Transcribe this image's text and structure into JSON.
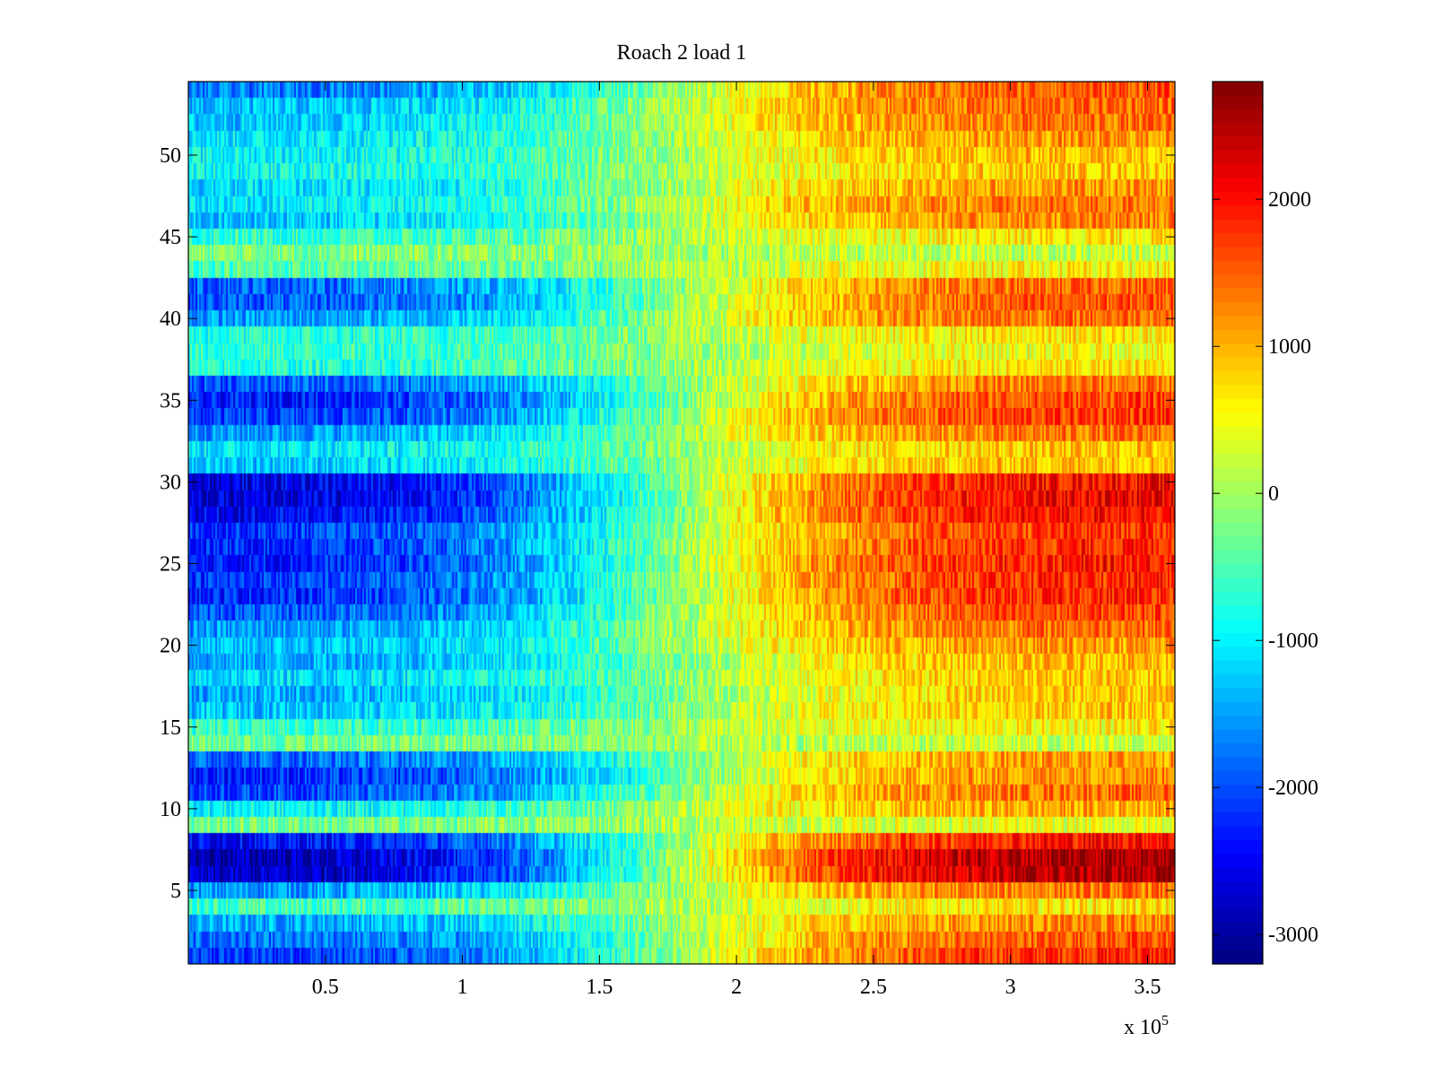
{
  "chart_data": {
    "type": "heatmap",
    "title": "Roach 2 load 1",
    "xlabel": "",
    "ylabel": "",
    "x_multiplier_label": "x 10",
    "x_multiplier_exponent": "5",
    "xlim": [
      0,
      3.6
    ],
    "ylim": [
      0.5,
      54.5
    ],
    "x_ticks": [
      0.5,
      1,
      1.5,
      2,
      2.5,
      3,
      3.5
    ],
    "x_tick_labels": [
      "0.5",
      "1",
      "1.5",
      "2",
      "2.5",
      "3",
      "3.5"
    ],
    "y_ticks": [
      5,
      10,
      15,
      20,
      25,
      30,
      35,
      40,
      45,
      50
    ],
    "y_tick_labels": [
      "5",
      "10",
      "15",
      "20",
      "25",
      "30",
      "35",
      "40",
      "45",
      "50"
    ],
    "colorbar": {
      "colormap": "jet",
      "clim": [
        -3200,
        2800
      ],
      "ticks": [
        2000,
        1000,
        0,
        -1000,
        -2000,
        -3000
      ],
      "tick_labels": [
        "2000",
        "1000",
        "0",
        "-1000",
        "-2000",
        "-3000"
      ]
    },
    "rows": {
      "description_omitted": true,
      "y_start": 1,
      "y_end": 54,
      "left_values": [
        -2200,
        -1900,
        -1500,
        -600,
        -1600,
        -2900,
        -3000,
        -2500,
        -300,
        -1000,
        -2100,
        -2300,
        -1900,
        -300,
        -700,
        -1300,
        -1500,
        -1200,
        -1500,
        -1400,
        -1600,
        -2000,
        -2300,
        -2200,
        -2400,
        -2300,
        -2200,
        -2600,
        -2800,
        -2700,
        -1300,
        -1100,
        -1600,
        -2200,
        -2400,
        -2000,
        -800,
        -700,
        -800,
        -1600,
        -2000,
        -1900,
        -500,
        -200,
        -700,
        -1300,
        -1100,
        -1200,
        -900,
        -1000,
        -1100,
        -1300,
        -1400,
        -1800
      ],
      "right_values": [
        1900,
        1600,
        1300,
        700,
        1400,
        2600,
        2700,
        2100,
        400,
        1100,
        1500,
        1300,
        1200,
        200,
        600,
        900,
        900,
        900,
        1000,
        1200,
        1500,
        1700,
        1900,
        1900,
        2000,
        1900,
        1800,
        2100,
        2200,
        2100,
        1000,
        900,
        1400,
        1800,
        1700,
        1400,
        700,
        500,
        700,
        1500,
        1600,
        1500,
        600,
        200,
        700,
        1300,
        1400,
        1200,
        900,
        1000,
        1200,
        1400,
        1500,
        1600
      ],
      "mid_x": 1.75,
      "noise_amplitude": 600
    }
  }
}
